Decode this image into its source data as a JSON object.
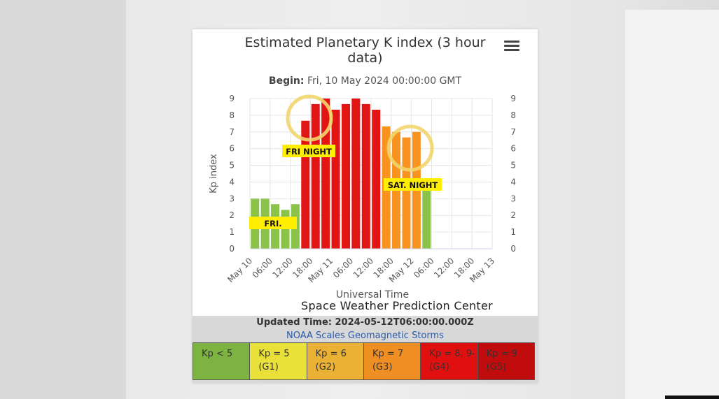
{
  "card": {
    "title_line1": "Estimated Planetary K index (3 hour",
    "title_line2": "data)",
    "begin_label": "Begin:",
    "begin_value": "Fri, 10 May 2024 00:00:00 GMT",
    "credit": "Space Weather Prediction Center"
  },
  "footer": {
    "updated": "Updated Time: 2024-05-12T06:00:00.000Z",
    "noaa_link": "NOAA Scales Geomagnetic Storms",
    "scales": [
      {
        "line1": "Kp < 5",
        "line2": "",
        "color": "#7cb341"
      },
      {
        "line1": "Kp = 5",
        "line2": "(G1)",
        "color": "#e9e03a"
      },
      {
        "line1": "Kp = 6",
        "line2": "(G2)",
        "color": "#eab135"
      },
      {
        "line1": "Kp = 7",
        "line2": "(G3)",
        "color": "#ef8e22"
      },
      {
        "line1": "Kp = 8, 9-",
        "line2": "(G4)",
        "color": "#e01010"
      },
      {
        "line1": "Kp = 9",
        "line2": "(G5)",
        "color": "#c00c0c"
      }
    ]
  },
  "annotations": {
    "fri": "FRI.",
    "fri_night": "FRI NIGHT",
    "sat_night": "SAT. NIGHT"
  },
  "chart_data": {
    "type": "bar",
    "title": "Estimated Planetary K index (3 hour data)",
    "subtitle": "Begin: Fri, 10 May 2024 00:00:00 GMT",
    "xlabel": "Universal Time",
    "ylabel": "Kp index",
    "ylim": [
      0,
      9
    ],
    "y_ticks": [
      "0",
      "1",
      "2",
      "3",
      "4",
      "5",
      "6",
      "7",
      "8",
      "9"
    ],
    "x_tick_labels": [
      "May 10",
      "06:00",
      "12:00",
      "18:00",
      "May 11",
      "06:00",
      "12:00",
      "18:00",
      "May 12",
      "06:00",
      "12:00",
      "18:00",
      "May 13"
    ],
    "x_tick_hours": [
      0,
      6,
      12,
      18,
      24,
      30,
      36,
      42,
      48,
      54,
      60,
      66,
      72
    ],
    "x_range_hours": [
      0,
      72
    ],
    "bar_width_hours": 3,
    "values": [
      3.0,
      3.0,
      2.67,
      2.33,
      2.67,
      7.67,
      8.67,
      9.0,
      8.33,
      8.67,
      9.0,
      8.67,
      8.33,
      7.33,
      7.0,
      6.67,
      7.0,
      3.67
    ],
    "colors": [
      "#8bc34a",
      "#8bc34a",
      "#8bc34a",
      "#8bc34a",
      "#8bc34a",
      "#e21515",
      "#e21515",
      "#e21515",
      "#e21515",
      "#e21515",
      "#e21515",
      "#e21515",
      "#e21515",
      "#f7931e",
      "#f7931e",
      "#f7931e",
      "#f7931e",
      "#8bc34a"
    ],
    "grid": true
  }
}
